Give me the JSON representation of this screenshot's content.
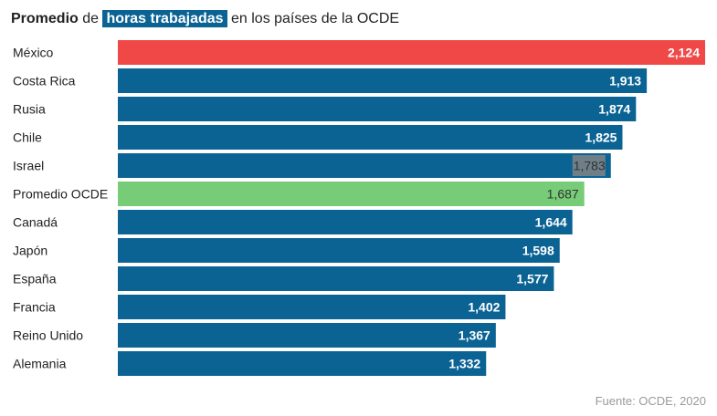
{
  "title": {
    "part1": "Promedio",
    "part2": " de ",
    "part3": "horas trabajadas",
    "part4": " en los países de la OCDE"
  },
  "source": "Fuente: OCDE, 2020",
  "colors": {
    "default": "#0b6394",
    "highlight_max": "#f04747",
    "highlight_avg": "#77cc77",
    "label_dark": "#333333",
    "label_light": "#ffffff"
  },
  "chart_data": {
    "type": "bar",
    "orientation": "horizontal",
    "categories": [
      "México",
      "Costa Rica",
      "Rusia",
      "Chile",
      "Israel",
      "Promedio OCDE",
      "Canadá",
      "Japón",
      "España",
      "Francia",
      "Reino Unido",
      "Alemania"
    ],
    "values": [
      2124,
      1913,
      1874,
      1825,
      1783,
      1687,
      1644,
      1598,
      1577,
      1402,
      1367,
      1332
    ],
    "value_labels": [
      "2,124",
      "1,913",
      "1,874",
      "1,825",
      "1,783",
      "1,687",
      "1,644",
      "1,598",
      "1,577",
      "1,402",
      "1,367",
      "1,332"
    ],
    "bar_colors": [
      "#f04747",
      "#0b6394",
      "#0b6394",
      "#0b6394",
      "#0b6394",
      "#77cc77",
      "#0b6394",
      "#0b6394",
      "#0b6394",
      "#0b6394",
      "#0b6394",
      "#0b6394"
    ],
    "xlim": [
      0,
      2124
    ],
    "grid": false,
    "legend": "none"
  }
}
